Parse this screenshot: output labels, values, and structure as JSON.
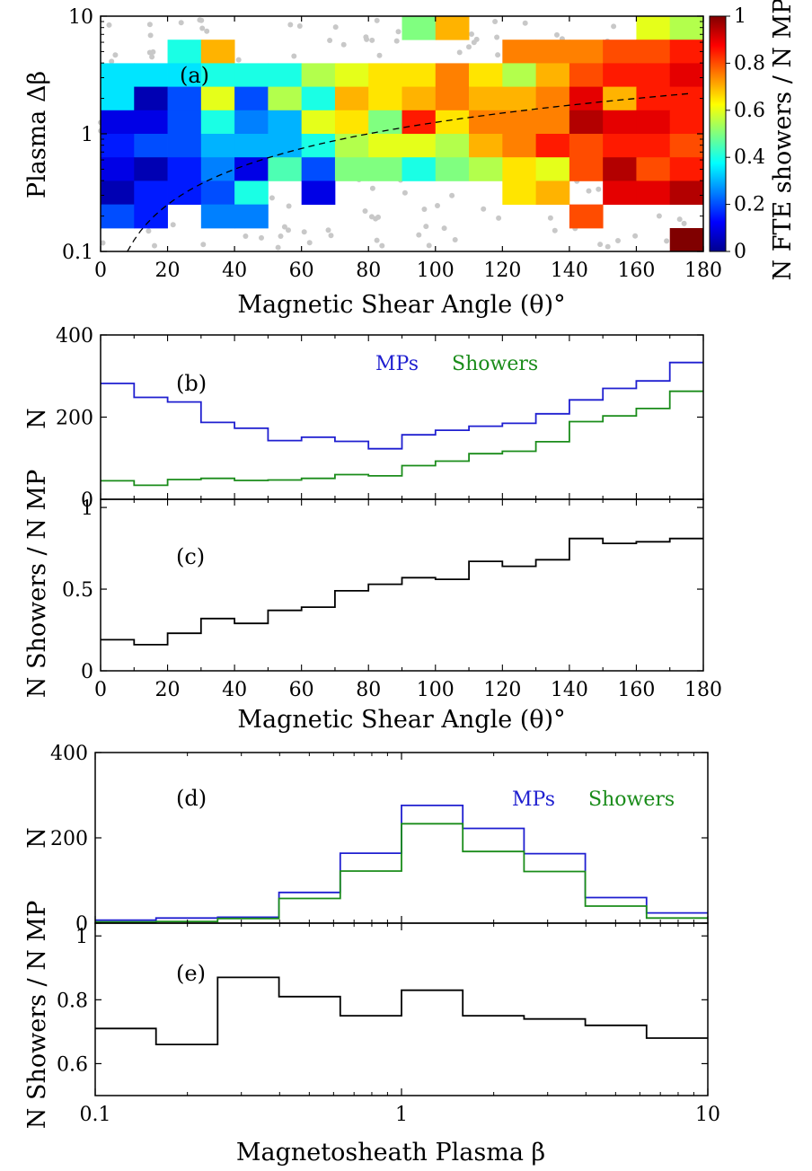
{
  "chart_data": [
    {
      "panel": "a",
      "type": "heatmap",
      "panel_label": "(a)",
      "xlabel": "Magnetic Shear Angle (θ)°",
      "ylabel": "Plasma Δβ",
      "xlim": [
        0,
        180
      ],
      "ylim": [
        0.1,
        10
      ],
      "yscale": "log",
      "xticks": [
        "0",
        "20",
        "40",
        "60",
        "80",
        "100",
        "120",
        "140",
        "160",
        "180"
      ],
      "yticks": [
        "0.1",
        "1",
        "10"
      ],
      "colorbar": {
        "label": "N FTE showers / N MP",
        "range": [
          0,
          1
        ],
        "ticks": [
          "0",
          "0.2",
          "0.4",
          "0.6",
          "0.8",
          "1"
        ]
      },
      "x_bin_edges": [
        0,
        10,
        20,
        30,
        40,
        50,
        60,
        70,
        80,
        90,
        100,
        110,
        120,
        130,
        140,
        150,
        160,
        170,
        180
      ],
      "y_bin_edges": [
        0.1,
        0.158,
        0.251,
        0.398,
        0.631,
        1.0,
        1.585,
        2.512,
        3.981,
        6.31,
        10
      ],
      "grid_rows_top_to_bottom": [
        [
          null,
          null,
          null,
          null,
          null,
          null,
          null,
          null,
          null,
          0.5,
          0.7,
          null,
          null,
          null,
          null,
          null,
          0.6,
          0.55
        ],
        [
          null,
          null,
          0.4,
          0.7,
          null,
          null,
          null,
          null,
          null,
          null,
          null,
          null,
          0.75,
          0.75,
          0.75,
          0.8,
          0.8,
          0.85
        ],
        [
          0.35,
          0.35,
          0.35,
          0.4,
          0.4,
          0.4,
          0.55,
          0.6,
          0.65,
          0.65,
          0.75,
          0.65,
          0.55,
          0.7,
          0.8,
          0.85,
          0.85,
          0.9
        ],
        [
          0.35,
          0.05,
          0.2,
          0.6,
          0.2,
          0.55,
          0.4,
          0.7,
          0.65,
          0.7,
          0.75,
          0.7,
          0.7,
          0.75,
          0.9,
          0.7,
          0.85,
          0.85
        ],
        [
          0.1,
          0.1,
          0.2,
          0.4,
          0.25,
          0.3,
          0.6,
          0.65,
          0.5,
          0.85,
          0.65,
          0.75,
          0.75,
          0.75,
          0.95,
          0.9,
          0.9,
          0.85
        ],
        [
          0.15,
          0.2,
          0.2,
          0.3,
          0.3,
          0.3,
          0.4,
          0.55,
          0.6,
          0.6,
          0.55,
          0.7,
          0.75,
          0.85,
          0.8,
          0.85,
          0.85,
          0.8
        ],
        [
          0.1,
          0.05,
          0.15,
          0.25,
          0.1,
          0.45,
          0.2,
          0.5,
          0.5,
          0.4,
          0.5,
          0.55,
          0.65,
          0.6,
          0.8,
          0.95,
          0.8,
          0.85
        ],
        [
          0.05,
          0.15,
          0.15,
          0.2,
          0.4,
          null,
          0.1,
          null,
          null,
          null,
          null,
          null,
          0.65,
          0.7,
          null,
          0.9,
          0.9,
          0.95
        ],
        [
          0.2,
          0.15,
          null,
          0.25,
          0.25,
          null,
          null,
          null,
          null,
          null,
          null,
          null,
          null,
          null,
          0.8,
          null,
          null,
          null
        ],
        [
          null,
          null,
          null,
          null,
          null,
          null,
          null,
          null,
          null,
          null,
          null,
          null,
          null,
          null,
          null,
          null,
          null,
          1.0
        ]
      ],
      "dashed_curve": "y = x/80 (approx.)"
    },
    {
      "panel": "b",
      "type": "line",
      "step": true,
      "panel_label": "(b)",
      "ylabel": "N",
      "xlim": [
        0,
        180
      ],
      "ylim": [
        0,
        400
      ],
      "yticks": [
        "0",
        "200",
        "400"
      ],
      "x_bin_edges": [
        0,
        10,
        20,
        30,
        40,
        50,
        60,
        70,
        80,
        90,
        100,
        110,
        120,
        130,
        140,
        150,
        160,
        170,
        180
      ],
      "series": [
        {
          "name": "MPs",
          "color": "#1f1fd0",
          "values": [
            282,
            248,
            237,
            187,
            173,
            143,
            151,
            141,
            123,
            157,
            168,
            178,
            185,
            208,
            242,
            270,
            288,
            333
          ]
        },
        {
          "name": "Showers",
          "color": "#1a8c1a",
          "values": [
            45,
            34,
            48,
            51,
            46,
            47,
            51,
            60,
            57,
            82,
            93,
            111,
            117,
            140,
            189,
            203,
            221,
            263
          ]
        }
      ]
    },
    {
      "panel": "c",
      "type": "line",
      "step": true,
      "panel_label": "(c)",
      "xlabel": "Magnetic Shear Angle (θ)°",
      "ylabel": "N Showers / N MP",
      "xlim": [
        0,
        180
      ],
      "ylim": [
        0,
        1.05
      ],
      "xticks": [
        "0",
        "20",
        "40",
        "60",
        "80",
        "100",
        "120",
        "140",
        "160",
        "180"
      ],
      "yticks": [
        "0",
        "0.5",
        "1"
      ],
      "x_bin_edges": [
        0,
        10,
        20,
        30,
        40,
        50,
        60,
        70,
        80,
        90,
        100,
        110,
        120,
        130,
        140,
        150,
        160,
        170,
        180
      ],
      "series": [
        {
          "values": [
            0.19,
            0.16,
            0.23,
            0.32,
            0.29,
            0.37,
            0.39,
            0.49,
            0.53,
            0.57,
            0.56,
            0.67,
            0.64,
            0.68,
            0.81,
            0.78,
            0.79,
            0.81
          ]
        }
      ]
    },
    {
      "panel": "d",
      "type": "line",
      "step": true,
      "panel_label": "(d)",
      "ylabel": "N",
      "xscale": "log",
      "xlim": [
        0.1,
        10
      ],
      "ylim": [
        0,
        400
      ],
      "yticks": [
        "0",
        "200",
        "400"
      ],
      "x_bin_edges": [
        0.1,
        0.158,
        0.251,
        0.398,
        0.631,
        1.0,
        1.585,
        2.512,
        3.981,
        6.31,
        10
      ],
      "series": [
        {
          "name": "MPs",
          "color": "#1f1fd0",
          "values": [
            7,
            12,
            14,
            72,
            164,
            276,
            222,
            163,
            60,
            24
          ]
        },
        {
          "name": "Showers",
          "color": "#1a8c1a",
          "values": [
            3,
            4,
            11,
            58,
            122,
            233,
            168,
            121,
            40,
            12
          ]
        }
      ]
    },
    {
      "panel": "e",
      "type": "line",
      "step": true,
      "panel_label": "(e)",
      "xlabel": "Magnetosheath Plasma β",
      "ylabel": "N Showers / N MP",
      "xscale": "log",
      "xlim": [
        0.1,
        10
      ],
      "ylim": [
        0.5,
        1.04
      ],
      "xticks": [
        "0.1",
        "1",
        "10"
      ],
      "yticks": [
        "0.6",
        "0.8",
        "1"
      ],
      "x_bin_edges": [
        0.1,
        0.158,
        0.251,
        0.398,
        0.631,
        1.0,
        1.585,
        2.512,
        3.981,
        6.31,
        10
      ],
      "series": [
        {
          "values": [
            0.71,
            0.66,
            0.87,
            0.81,
            0.75,
            0.83,
            0.75,
            0.74,
            0.72,
            0.68
          ]
        }
      ]
    }
  ]
}
